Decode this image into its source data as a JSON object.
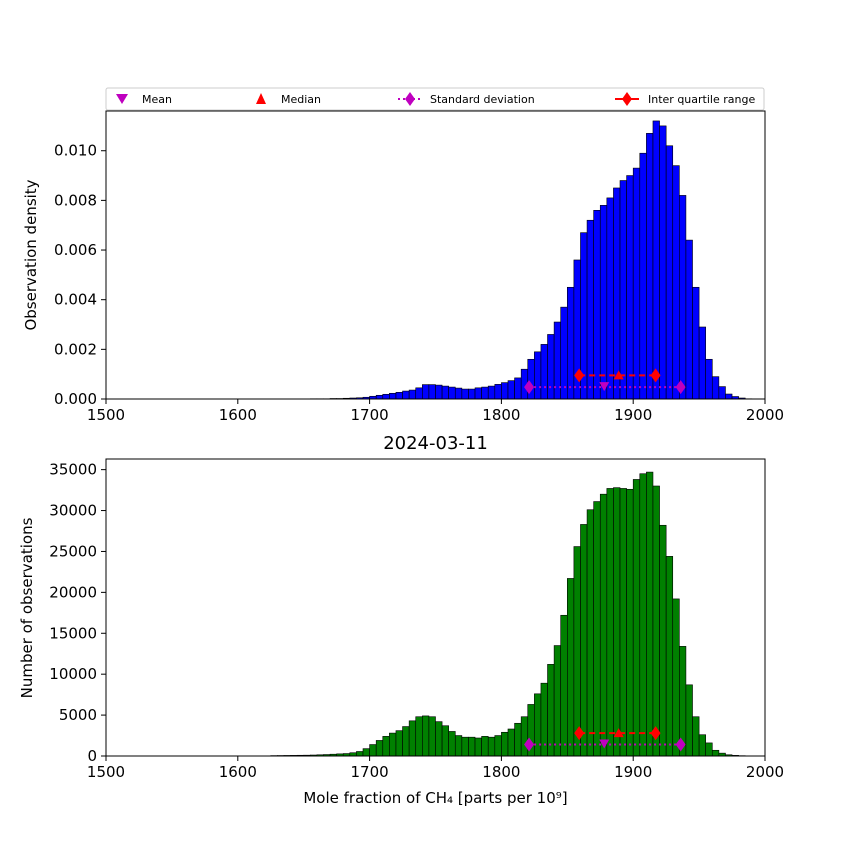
{
  "legend": {
    "mean": "Mean",
    "median": "Median",
    "std": "Standard deviation",
    "iqr": "Inter quartile range"
  },
  "colors": {
    "top_bars": "#0000ff",
    "bottom_bars": "#008000",
    "mean_std": "#bf00bf",
    "median_iqr": "#ff0000"
  },
  "chart_data": [
    {
      "type": "bar",
      "panel": "top",
      "title": "",
      "xlabel": "",
      "ylabel": "Observation density",
      "xlim": [
        1500,
        2000
      ],
      "ylim": [
        0,
        0.0116
      ],
      "xticks": [
        1500,
        1600,
        1700,
        1800,
        1900,
        2000
      ],
      "yticks": [
        "0.000",
        "0.002",
        "0.004",
        "0.006",
        "0.008",
        "0.010"
      ],
      "bin_width": 5,
      "bin_starts": [
        1655,
        1660,
        1665,
        1670,
        1675,
        1680,
        1685,
        1690,
        1695,
        1700,
        1705,
        1710,
        1715,
        1720,
        1725,
        1730,
        1735,
        1740,
        1745,
        1750,
        1755,
        1760,
        1765,
        1770,
        1775,
        1780,
        1785,
        1790,
        1795,
        1800,
        1805,
        1810,
        1815,
        1820,
        1825,
        1830,
        1835,
        1840,
        1845,
        1850,
        1855,
        1860,
        1865,
        1870,
        1875,
        1880,
        1885,
        1890,
        1895,
        1900,
        1905,
        1910,
        1915,
        1920,
        1925,
        1930,
        1935,
        1940,
        1945,
        1950,
        1955,
        1960,
        1965,
        1970,
        1975,
        1980,
        1985
      ],
      "values": [
        1e-05,
        1e-05,
        1e-05,
        2e-05,
        2e-05,
        3e-05,
        4e-05,
        5e-05,
        7e-05,
        0.00011,
        0.00015,
        0.00019,
        0.00023,
        0.00027,
        0.00032,
        0.00036,
        0.00045,
        0.00058,
        0.00058,
        0.00056,
        0.00052,
        0.00048,
        0.00044,
        0.0004,
        0.0004,
        0.00045,
        0.00048,
        0.00052,
        0.00059,
        0.00066,
        0.00074,
        0.00085,
        0.0012,
        0.0016,
        0.0019,
        0.0022,
        0.0026,
        0.0031,
        0.0037,
        0.0045,
        0.0056,
        0.0067,
        0.0072,
        0.0076,
        0.0078,
        0.0081,
        0.0085,
        0.0088,
        0.009,
        0.0093,
        0.0099,
        0.0107,
        0.0112,
        0.011,
        0.0102,
        0.0094,
        0.0082,
        0.0064,
        0.0045,
        0.0029,
        0.0016,
        0.0009,
        0.0005,
        0.0002,
        0.0001,
        4e-05,
        1e-05
      ],
      "mean": 1878,
      "median": 1889,
      "std_range": [
        1821,
        1936
      ],
      "iqr": [
        1859,
        1917
      ],
      "mean_y": 0.00048,
      "median_y": 0.00095
    },
    {
      "type": "bar",
      "panel": "bottom",
      "title": "2024-03-11",
      "xlabel": "Mole fraction of CH₄ [parts per 10⁹]",
      "ylabel": "Number of observations",
      "xlim": [
        1500,
        2000
      ],
      "ylim": [
        0,
        36300
      ],
      "xticks": [
        1500,
        1600,
        1700,
        1800,
        1900,
        2000
      ],
      "yticks": [
        "0",
        "5000",
        "10000",
        "15000",
        "20000",
        "25000",
        "30000",
        "35000"
      ],
      "bin_width": 5,
      "bin_starts": [
        1625,
        1630,
        1635,
        1640,
        1645,
        1650,
        1655,
        1660,
        1665,
        1670,
        1675,
        1680,
        1685,
        1690,
        1695,
        1700,
        1705,
        1710,
        1715,
        1720,
        1725,
        1730,
        1735,
        1740,
        1745,
        1750,
        1755,
        1760,
        1765,
        1770,
        1775,
        1780,
        1785,
        1790,
        1795,
        1800,
        1805,
        1810,
        1815,
        1820,
        1825,
        1830,
        1835,
        1840,
        1845,
        1850,
        1855,
        1860,
        1865,
        1870,
        1875,
        1880,
        1885,
        1890,
        1895,
        1900,
        1905,
        1910,
        1915,
        1920,
        1925,
        1930,
        1935,
        1940,
        1945,
        1950,
        1955,
        1960,
        1965,
        1970,
        1975,
        1980,
        1985
      ],
      "values": [
        50,
        60,
        70,
        80,
        90,
        100,
        120,
        150,
        180,
        220,
        260,
        300,
        400,
        550,
        900,
        1400,
        1900,
        2400,
        2800,
        3100,
        3600,
        4300,
        4800,
        4900,
        4800,
        4200,
        3700,
        3000,
        2500,
        2300,
        2300,
        2200,
        2400,
        2300,
        2500,
        2900,
        3300,
        4000,
        4800,
        6300,
        7600,
        8900,
        11200,
        13500,
        17200,
        21700,
        25600,
        28300,
        30100,
        31100,
        32000,
        32700,
        32800,
        32700,
        32600,
        33800,
        34500,
        34700,
        33000,
        28200,
        24400,
        19200,
        13400,
        8700,
        4800,
        2600,
        1600,
        700,
        350,
        150,
        80,
        40,
        20
      ],
      "mean": 1878,
      "median": 1889,
      "std_range": [
        1821,
        1936
      ],
      "iqr": [
        1859,
        1917
      ],
      "mean_y": 1400,
      "median_y": 2800
    }
  ]
}
